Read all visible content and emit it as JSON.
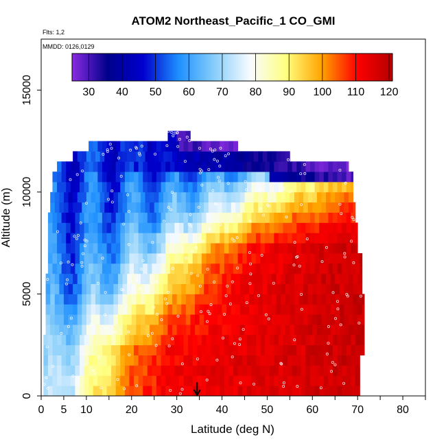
{
  "header": {
    "title": "ATOM2 Northeast_Pacific_1 CO_GMI",
    "flights_note": "Flts: 1,2",
    "date_note": "MMDD: 0126,0129"
  },
  "chart_data": {
    "type": "heatmap",
    "title": "ATOM2 Northeast_Pacific_1 CO_GMI",
    "xlabel": "Latitude (deg N)",
    "ylabel": "Altitude (m)",
    "xlim": [
      0,
      85
    ],
    "ylim": [
      0,
      17500
    ],
    "x_ticks": [
      0,
      5,
      10,
      20,
      30,
      40,
      50,
      60,
      70,
      80
    ],
    "x_minor_ticks": [
      15,
      25,
      35,
      45,
      55,
      65,
      75,
      85
    ],
    "y_ticks": [
      0,
      5000,
      10000,
      15000
    ],
    "colorbar": {
      "min": 25,
      "max": 121,
      "ticks": [
        30,
        40,
        50,
        60,
        70,
        80,
        90,
        100,
        110,
        120
      ],
      "palette": [
        "#8a2be2",
        "#00008b",
        "#0000cd",
        "#1e90ff",
        "#87cefa",
        "#f8fbff",
        "#ffff80",
        "#ffa500",
        "#ff0000",
        "#b40000"
      ]
    },
    "flight_marker": {
      "latitude": 34.5,
      "direction": "down"
    },
    "alt_bin": 500,
    "profile_rows": [
      {
        "alt": 0,
        "lat_min": 0.5,
        "lat_max": 70.5,
        "front_lat": 10.5,
        "sw": 6
      },
      {
        "alt": 500,
        "lat_min": 0.5,
        "lat_max": 70.5,
        "front_lat": 11,
        "sw": 6
      },
      {
        "alt": 1000,
        "lat_min": 0.5,
        "lat_max": 70.5,
        "front_lat": 11.5,
        "sw": 6
      },
      {
        "alt": 1500,
        "lat_min": 0.5,
        "lat_max": 70.5,
        "front_lat": 12,
        "sw": 6
      },
      {
        "alt": 2000,
        "lat_min": 0.5,
        "lat_max": 71.5,
        "front_lat": 12.5,
        "sw": 6
      },
      {
        "alt": 2500,
        "lat_min": 0.5,
        "lat_max": 71.5,
        "front_lat": 14,
        "sw": 7
      },
      {
        "alt": 3000,
        "lat_min": 1,
        "lat_max": 71.5,
        "front_lat": 16,
        "sw": 7
      },
      {
        "alt": 3500,
        "lat_min": 1,
        "lat_max": 71.5,
        "front_lat": 17.5,
        "sw": 7
      },
      {
        "alt": 4000,
        "lat_min": 1,
        "lat_max": 71.5,
        "front_lat": 20,
        "sw": 7
      },
      {
        "alt": 4500,
        "lat_min": 1,
        "lat_max": 71.5,
        "front_lat": 22,
        "sw": 7
      },
      {
        "alt": 5000,
        "lat_min": 1,
        "lat_max": 71,
        "front_lat": 24,
        "sw": 7
      },
      {
        "alt": 5500,
        "lat_min": 1,
        "lat_max": 71,
        "front_lat": 25.5,
        "sw": 7
      },
      {
        "alt": 6000,
        "lat_min": 1.5,
        "lat_max": 71,
        "front_lat": 27,
        "sw": 7
      },
      {
        "alt": 6500,
        "lat_min": 1.5,
        "lat_max": 71,
        "front_lat": 29,
        "sw": 7
      },
      {
        "alt": 7000,
        "lat_min": 1.5,
        "lat_max": 70,
        "front_lat": 31,
        "sw": 7
      },
      {
        "alt": 7500,
        "lat_min": 1.5,
        "lat_max": 70,
        "front_lat": 33,
        "sw": 8
      },
      {
        "alt": 8000,
        "lat_min": 1.5,
        "lat_max": 70,
        "front_lat": 36,
        "sw": 8
      },
      {
        "alt": 8500,
        "lat_min": 1.5,
        "lat_max": 69.5,
        "front_lat": 39,
        "sw": 9
      },
      {
        "alt": 9000,
        "lat_min": 2,
        "lat_max": 69.5,
        "front_lat": 42,
        "sw": 9
      },
      {
        "alt": 9500,
        "lat_min": 2,
        "lat_max": 69,
        "front_lat": 44,
        "sw": 10
      },
      {
        "alt": 10000,
        "lat_min": 2.5,
        "lat_max": 69,
        "front_lat": 48,
        "sw": 10
      },
      {
        "alt": 10500,
        "lat_min": 2.5,
        "lat_max": 69,
        "front_lat": 55,
        "sw": 10
      },
      {
        "alt": 11000,
        "lat_min": 3.5,
        "lat_max": 68,
        "front_lat": 80,
        "sw": 8
      },
      {
        "alt": 11500,
        "lat_min": 7,
        "lat_max": 55,
        "front_lat": 80,
        "sw": 8
      },
      {
        "alt": 12000,
        "lat_min": 10.5,
        "lat_max": 43.5,
        "front_lat": 80,
        "sw": 8
      },
      {
        "alt": 12500,
        "lat_min": 28,
        "lat_max": 33,
        "front_lat": 80,
        "sw": 8
      }
    ]
  }
}
